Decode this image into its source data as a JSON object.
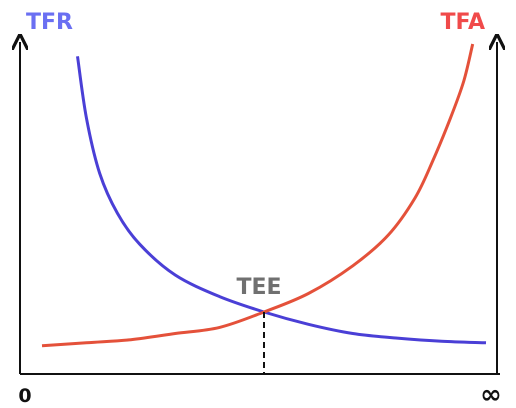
{
  "chart_data": {
    "type": "line",
    "title": "",
    "x_tick_labels": [
      "0",
      "∞"
    ],
    "ylabels": {
      "left": "TFR",
      "right": "TFA"
    },
    "annotation": "TEE",
    "colors": {
      "left_series": "#4a3fd6",
      "right_series": "#e4513a",
      "left_label": "#6a6ff2",
      "right_label": "#f04a4a",
      "annotation": "#707070",
      "axes": "#111111"
    },
    "series": [
      {
        "name": "TFR",
        "x": [
          0.08,
          0.1,
          0.13,
          0.17,
          0.22,
          0.3,
          0.4,
          0.5,
          0.6,
          0.7,
          0.8,
          0.9,
          1.0
        ],
        "y": [
          0.96,
          0.76,
          0.58,
          0.45,
          0.35,
          0.25,
          0.18,
          0.13,
          0.09,
          0.06,
          0.045,
          0.035,
          0.03
        ]
      },
      {
        "name": "TFA",
        "x": [
          0.0,
          0.1,
          0.2,
          0.3,
          0.4,
          0.5,
          0.6,
          0.7,
          0.78,
          0.84,
          0.88,
          0.92,
          0.95,
          0.97
        ],
        "y": [
          0.02,
          0.03,
          0.04,
          0.06,
          0.08,
          0.13,
          0.19,
          0.28,
          0.38,
          0.5,
          0.62,
          0.76,
          0.88,
          1.0
        ]
      }
    ],
    "intersection_x": 0.5,
    "grid": false,
    "legend": "none"
  }
}
